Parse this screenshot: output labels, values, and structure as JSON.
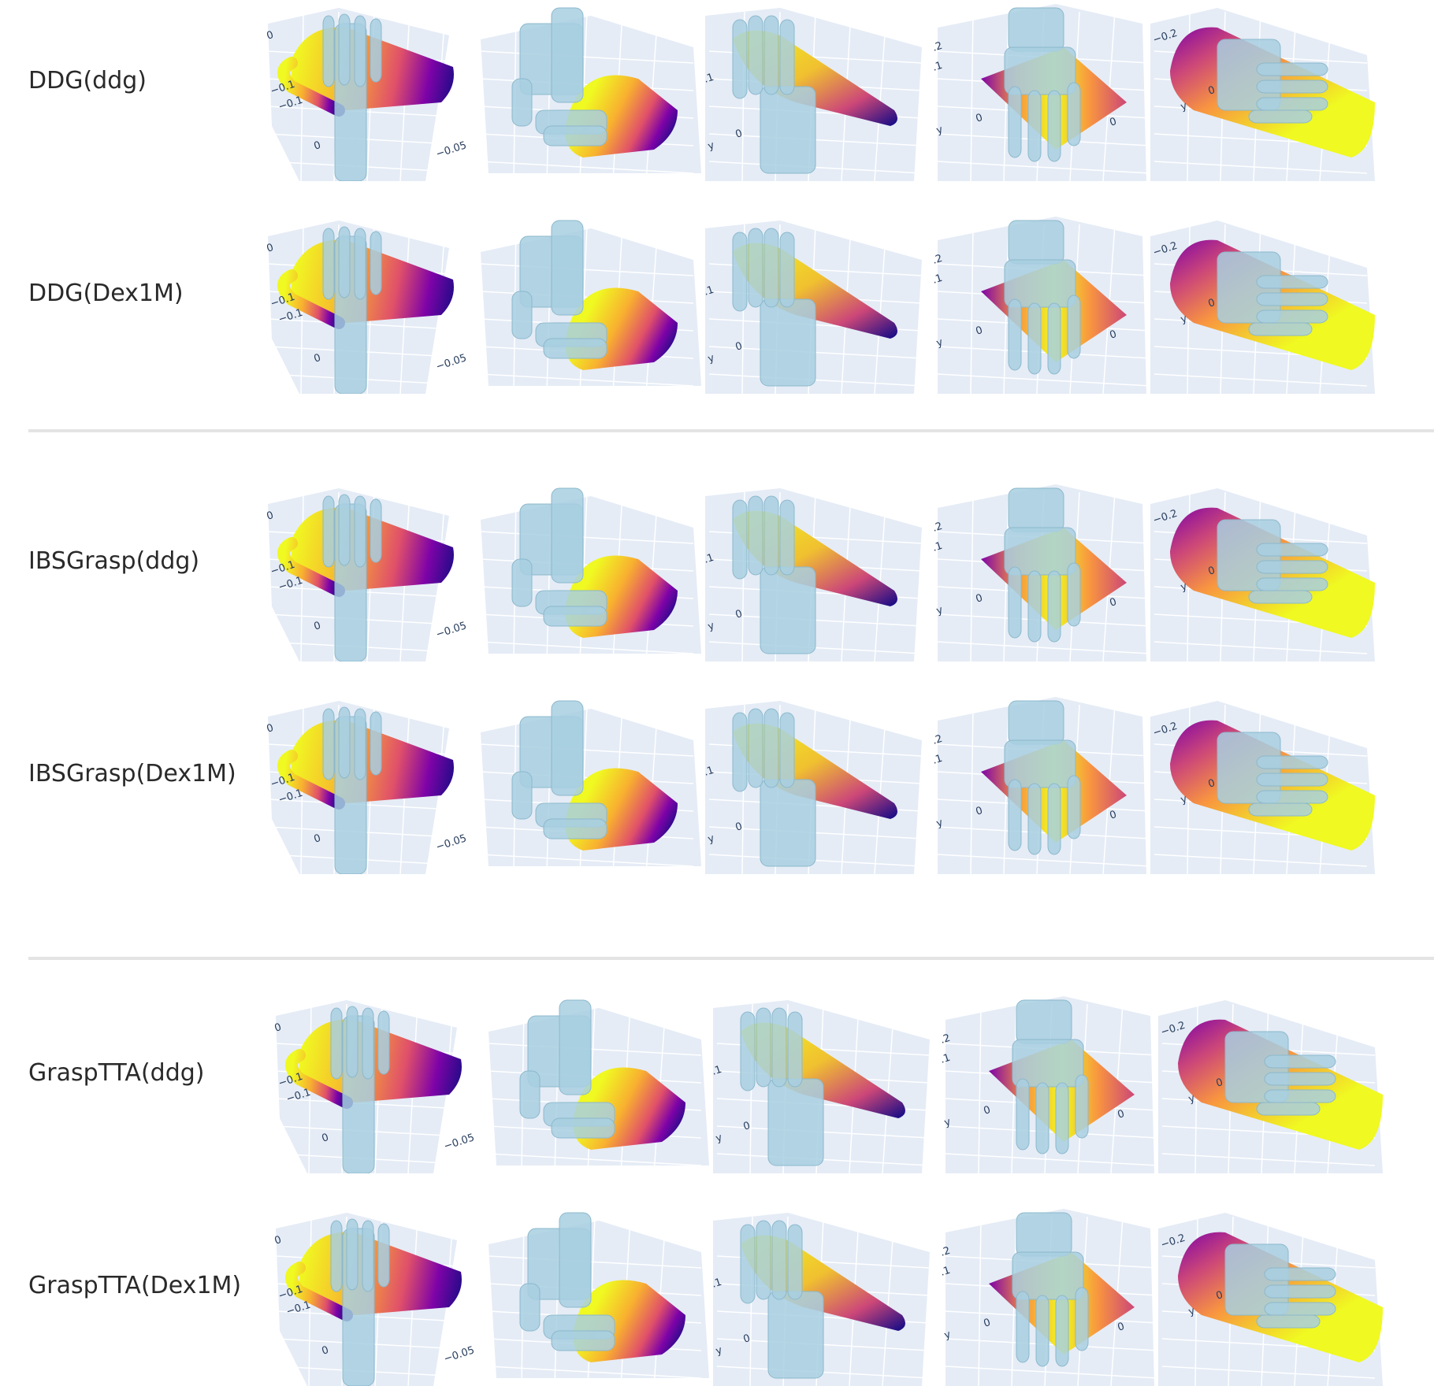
{
  "rows": [
    {
      "label": "DDG(ddg)"
    },
    {
      "label": "DDG(Dex1M)"
    },
    {
      "label": "IBSGrasp(ddg)"
    },
    {
      "label": "IBSGrasp(Dex1M)"
    },
    {
      "label": "GraspTTA(ddg)"
    },
    {
      "label": "GraspTTA(Dex1M)"
    }
  ],
  "views": [
    {
      "ticks": [
        "0",
        "−0.1",
        "−0.1",
        "0",
        "−0.05"
      ]
    },
    {
      "ticks": []
    },
    {
      "ticks": [
        "y",
        "0",
        ".1"
      ]
    },
    {
      "ticks": [
        "y",
        "0",
        "0",
        ".2",
        ".1"
      ]
    },
    {
      "ticks": [
        "−0.2",
        "y",
        "0"
      ]
    }
  ],
  "colors": {
    "scene_bg": "#e5ecf6",
    "grid": "#ffffff",
    "tick_text": "#2a3f5f",
    "hand": "#a8cfe0",
    "colormap": [
      "#0d0887",
      "#7e03a8",
      "#cc4778",
      "#f89540",
      "#f0f921"
    ]
  }
}
